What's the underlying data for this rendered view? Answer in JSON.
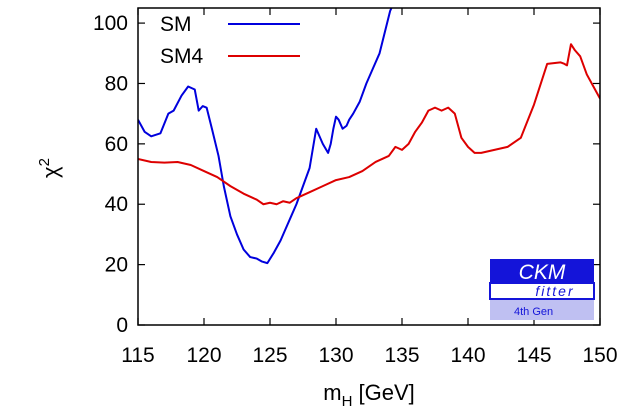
{
  "chart_data": {
    "type": "line",
    "xlabel_main": "m",
    "xlabel_sub": "H",
    "xlabel_unit": " [GeV]",
    "ylabel_main": "χ",
    "ylabel_sup": "2",
    "xlim": [
      115,
      150
    ],
    "ylim": [
      0,
      105
    ],
    "xticks": [
      115,
      120,
      125,
      130,
      135,
      140,
      145,
      150
    ],
    "yticks": [
      0,
      20,
      40,
      60,
      80,
      100
    ],
    "grid": false,
    "legend_position": "top-left",
    "series": [
      {
        "name": "SM",
        "color": "#0000dd",
        "x": [
          115,
          115.5,
          116,
          116.7,
          117.3,
          117.7,
          118.3,
          118.8,
          119.3,
          119.6,
          119.9,
          120.2,
          120.6,
          121.1,
          121.5,
          122.0,
          122.5,
          123.0,
          123.5,
          124.0,
          124.4,
          124.8,
          125.3,
          125.8,
          126.2,
          126.6,
          127.0,
          127.5,
          128.0,
          128.5,
          129.0,
          129.4,
          129.6,
          129.8,
          130.0,
          130.2,
          130.5,
          130.8,
          131.0,
          131.3,
          131.8,
          132.3,
          132.8,
          133.3,
          133.7,
          134.1,
          134.3
        ],
        "values": [
          68,
          64,
          62.5,
          63.5,
          70,
          71,
          76,
          79,
          78,
          71,
          72.5,
          72,
          65,
          56,
          46,
          36,
          30,
          25,
          22.5,
          22,
          21,
          20.5,
          24,
          28,
          32,
          36,
          40,
          46,
          52,
          65,
          60,
          57,
          60,
          65,
          69,
          68,
          65,
          66,
          68,
          70,
          74,
          80,
          85,
          90,
          97,
          104,
          106
        ]
      },
      {
        "name": "SM4",
        "color": "#dd0000",
        "x": [
          115,
          116,
          117,
          118,
          119,
          120,
          121,
          122,
          123,
          124,
          124.5,
          125,
          125.5,
          126,
          126.5,
          127,
          128,
          129,
          130,
          131,
          132,
          133,
          133.5,
          134,
          134.5,
          135,
          135.5,
          136,
          136.5,
          137,
          137.5,
          138,
          138.5,
          139,
          139.5,
          140,
          140.5,
          141,
          142,
          143,
          144,
          145,
          146,
          147,
          147.3,
          147.5,
          147.8,
          148.1,
          148.5,
          149,
          149.5,
          150
        ],
        "values": [
          55,
          54,
          53.8,
          54,
          53,
          51,
          49,
          46,
          43.5,
          41.5,
          40,
          40.5,
          40,
          41,
          40.5,
          42,
          44,
          46,
          48,
          49,
          51,
          54,
          55,
          56,
          59,
          58,
          60,
          64,
          67,
          71,
          72,
          71,
          72,
          70,
          62,
          59,
          57,
          57,
          58,
          59,
          62,
          73,
          86.5,
          87,
          86.5,
          86,
          93,
          91,
          89,
          83,
          79,
          75
        ]
      }
    ]
  },
  "logo": {
    "title": "CKM",
    "subtitle": "fitter",
    "tag": "4th Gen"
  }
}
